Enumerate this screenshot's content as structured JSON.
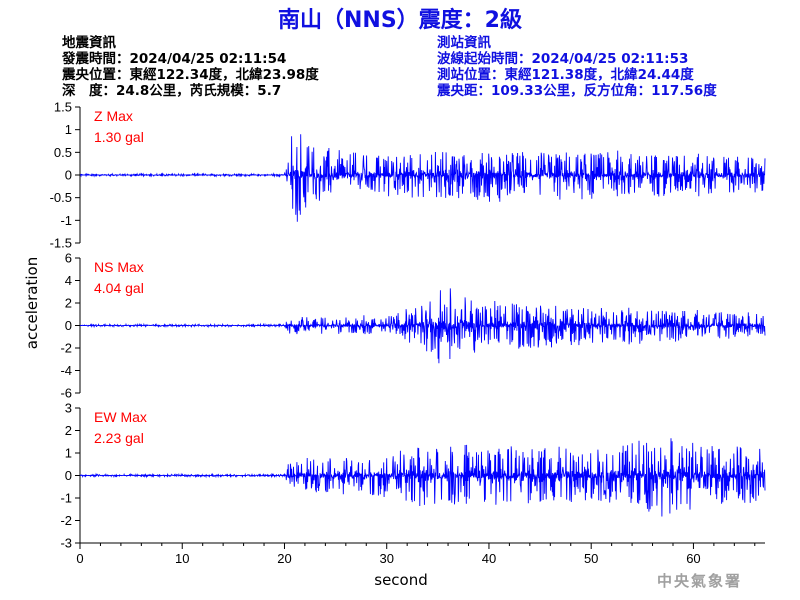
{
  "page": {
    "title": "南山（NNS）震度：2級",
    "footer": "中央氣象署"
  },
  "quake_info": {
    "heading": "地震資訊",
    "origin_time": "發震時間：2024/04/25 02:11:54",
    "epicenter": "震央位置：東經122.34度，北緯23.98度",
    "depth_magnitude": "深　度：24.8公里，芮氏規模：5.7"
  },
  "station_info": {
    "heading": "測站資訊",
    "onset_time": "波線起始時間：2024/04/25 02:11:53",
    "location": "測站位置：東經121.38度，北緯24.44度",
    "distance_azimuth": "震央距：109.33公里，反方位角：117.56度"
  },
  "chart_data": {
    "type": "line",
    "xlabel": "second",
    "ylabel": "acceleration",
    "xlim": [
      0,
      67
    ],
    "xticks": [
      0,
      10,
      20,
      30,
      40,
      50,
      60
    ],
    "line_color": "#0000ff",
    "label_color": "#ff0000",
    "grid": false,
    "panels": [
      {
        "name": "Z",
        "max_label": "Z Max",
        "max_value": "1.30 gal",
        "ylim": [
          -1.5,
          1.5
        ],
        "yticks": [
          "1.5",
          "1",
          "0.5",
          "0",
          "-0.5",
          "-1",
          "-1.5"
        ],
        "ytick_values": [
          1.5,
          1,
          0.5,
          0,
          -0.5,
          -1,
          -1.5
        ],
        "envelope": [
          [
            0,
            0.03
          ],
          [
            20,
            0.03
          ],
          [
            20.3,
            0.3
          ],
          [
            20.8,
            1.3
          ],
          [
            21.5,
            1.1
          ],
          [
            23,
            0.75
          ],
          [
            26,
            0.6
          ],
          [
            30,
            0.55
          ],
          [
            35,
            0.6
          ],
          [
            40,
            0.65
          ],
          [
            45,
            0.6
          ],
          [
            50,
            0.6
          ],
          [
            55,
            0.55
          ],
          [
            60,
            0.55
          ],
          [
            65,
            0.5
          ],
          [
            67,
            0.45
          ]
        ]
      },
      {
        "name": "NS",
        "max_label": "NS Max",
        "max_value": "4.04 gal",
        "ylim": [
          -6,
          6
        ],
        "yticks": [
          "6",
          "4",
          "2",
          "0",
          "-2",
          "-4",
          "-6"
        ],
        "ytick_values": [
          6,
          4,
          2,
          0,
          -2,
          -4,
          -6
        ],
        "envelope": [
          [
            0,
            0.12
          ],
          [
            20,
            0.12
          ],
          [
            20.5,
            0.9
          ],
          [
            24,
            0.9
          ],
          [
            30,
            1.0
          ],
          [
            33,
            2.0
          ],
          [
            35,
            3.9
          ],
          [
            37,
            3.2
          ],
          [
            40,
            2.5
          ],
          [
            45,
            2.3
          ],
          [
            50,
            1.9
          ],
          [
            55,
            1.8
          ],
          [
            60,
            1.6
          ],
          [
            65,
            1.4
          ],
          [
            67,
            1.2
          ]
        ]
      },
      {
        "name": "EW",
        "max_label": "EW Max",
        "max_value": "2.23 gal",
        "ylim": [
          -3,
          3
        ],
        "yticks": [
          "3",
          "2",
          "1",
          "0",
          "-1",
          "-2",
          "-3"
        ],
        "ytick_values": [
          3,
          2,
          1,
          0,
          -1,
          -2,
          -3
        ],
        "envelope": [
          [
            0,
            0.06
          ],
          [
            20,
            0.06
          ],
          [
            20.5,
            0.8
          ],
          [
            24,
            0.9
          ],
          [
            30,
            1.1
          ],
          [
            33,
            1.5
          ],
          [
            35,
            1.6
          ],
          [
            40,
            1.4
          ],
          [
            45,
            1.5
          ],
          [
            50,
            1.4
          ],
          [
            55,
            1.7
          ],
          [
            57,
            2.2
          ],
          [
            60,
            1.7
          ],
          [
            65,
            1.5
          ],
          [
            67,
            1.3
          ]
        ]
      }
    ]
  }
}
